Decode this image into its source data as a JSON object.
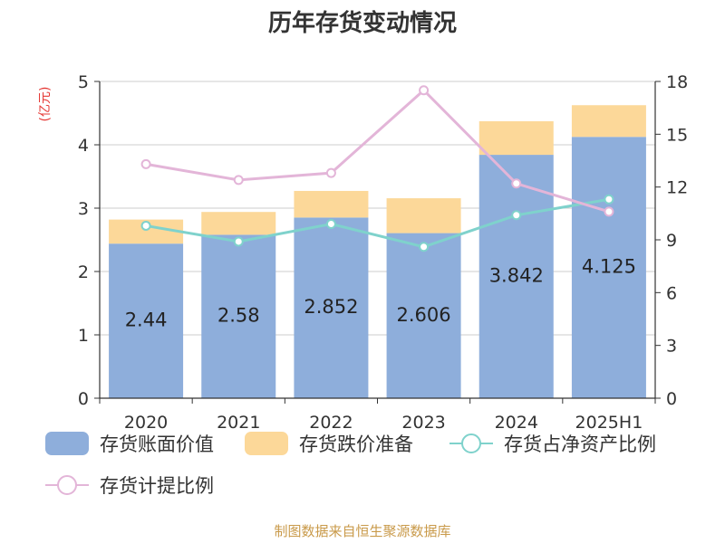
{
  "chart_data": {
    "type": "bar",
    "title": "历年存货变动情况",
    "categories": [
      "2020",
      "2021",
      "2022",
      "2023",
      "2024",
      "2025H1"
    ],
    "left_axis": {
      "unit": "(亿元)",
      "ylim": [
        0,
        5
      ],
      "ticks": [
        0,
        1,
        2,
        3,
        4,
        5
      ]
    },
    "right_axis": {
      "unit": "%",
      "ylim": [
        0,
        18
      ],
      "ticks": [
        0,
        3,
        6,
        9,
        12,
        15,
        18
      ]
    },
    "stacked": true,
    "series": [
      {
        "name": "存货账面价值",
        "kind": "bar",
        "axis": "left",
        "color": "#8eaedb",
        "values": [
          2.44,
          2.58,
          2.852,
          2.606,
          3.842,
          4.125
        ],
        "labels": [
          "2.44",
          "2.58",
          "2.852",
          "2.606",
          "3.842",
          "4.125"
        ]
      },
      {
        "name": "存货跌价准备",
        "kind": "bar",
        "axis": "left",
        "color": "#fcd899",
        "values": [
          0.38,
          0.36,
          0.42,
          0.55,
          0.53,
          0.5
        ]
      },
      {
        "name": "存货占净资产比例",
        "kind": "line",
        "axis": "right",
        "color": "#7fd2cc",
        "values": [
          9.8,
          8.9,
          9.9,
          8.6,
          10.4,
          11.3
        ]
      },
      {
        "name": "存货计提比例",
        "kind": "line",
        "axis": "right",
        "color": "#e3b5d8",
        "values": [
          13.3,
          12.4,
          12.8,
          17.5,
          12.2,
          10.6
        ]
      }
    ],
    "grid": true,
    "legend": "bottom"
  },
  "footer": {
    "source": "制图数据来自恒生聚源数据库"
  }
}
